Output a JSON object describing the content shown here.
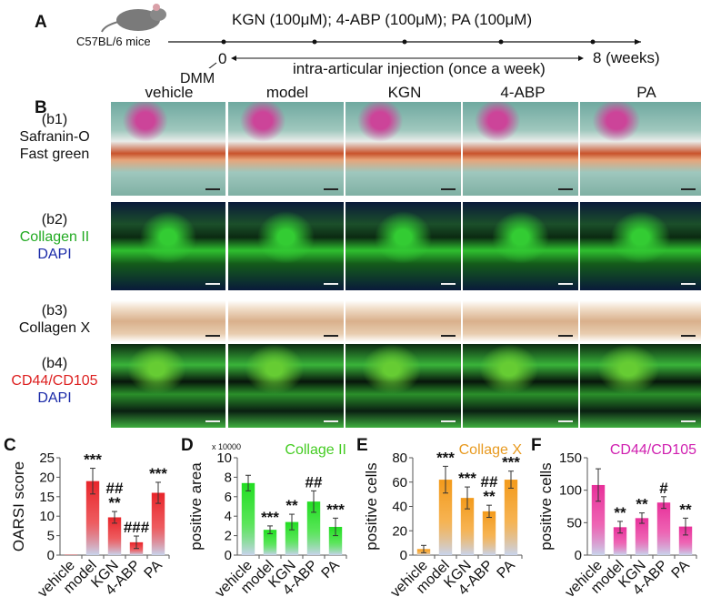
{
  "panelA": {
    "label": "A",
    "strain": "C57BL/6 mice",
    "treatment": "KGN (100μM); 4-ABP (100μM); PA (100μM)",
    "start": "0",
    "end": "8 (weeks)",
    "surgery": "DMM",
    "injection": "intra-articular injection (once a week)",
    "icon": "mouse-icon"
  },
  "panelB": {
    "label": "B",
    "columns": [
      "vehicle",
      "model",
      "KGN",
      "4-ABP",
      "PA"
    ],
    "rows": [
      {
        "id": "(b1)",
        "lines": [
          "Safranin-O",
          "Fast green"
        ],
        "colors": [
          "#111",
          "#111"
        ]
      },
      {
        "id": "(b2)",
        "lines": [
          "Collagen II",
          "DAPI"
        ],
        "colors": [
          "#22aa22",
          "#1a2aa8"
        ]
      },
      {
        "id": "(b3)",
        "lines": [
          "Collagen X"
        ],
        "colors": [
          "#111"
        ]
      },
      {
        "id": "(b4)",
        "lines": [
          "CD44/CD105",
          "DAPI"
        ],
        "colors": [
          "#dd2020",
          "#1a2aa8"
        ]
      }
    ]
  },
  "chart_data": [
    {
      "panel": "C",
      "type": "bar",
      "title": "",
      "ylabel": "OARSI score",
      "ylim": [
        0,
        25
      ],
      "yticks": [
        0,
        5,
        10,
        15,
        20,
        25
      ],
      "multiplier": "",
      "color": "#e8252a",
      "categories": [
        "vehicle",
        "model",
        "KGN",
        "4-ABP",
        "PA"
      ],
      "values": [
        0.1,
        19,
        9.7,
        3.3,
        16
      ],
      "errors": [
        0,
        3.3,
        1.5,
        1.6,
        2.7
      ],
      "annotations": [
        [],
        [
          "***"
        ],
        [
          "##",
          "**"
        ],
        [
          "###"
        ],
        [
          "***"
        ]
      ]
    },
    {
      "panel": "D",
      "type": "bar",
      "title": "Collage II",
      "title_color": "#44cc22",
      "ylabel": "positive area",
      "ylim": [
        0,
        10
      ],
      "yticks": [
        0,
        2,
        4,
        6,
        8,
        10
      ],
      "multiplier": "x 10000",
      "color": "#22dd22",
      "categories": [
        "vehicle",
        "model",
        "KGN",
        "4-ABP",
        "PA"
      ],
      "values": [
        7.4,
        2.6,
        3.4,
        5.5,
        2.9
      ],
      "errors": [
        0.8,
        0.4,
        0.8,
        1.1,
        0.9
      ],
      "annotations": [
        [],
        [
          "***"
        ],
        [
          "**"
        ],
        [
          "##"
        ],
        [
          "***"
        ]
      ]
    },
    {
      "panel": "E",
      "type": "bar",
      "title": "Collage X",
      "title_color": "#e89a20",
      "ylabel": "positive cells",
      "ylim": [
        0,
        80
      ],
      "yticks": [
        0,
        20,
        40,
        60,
        80
      ],
      "multiplier": "",
      "color": "#f39a1a",
      "categories": [
        "vehicle",
        "model",
        "KGN",
        "4-ABP",
        "PA"
      ],
      "values": [
        5,
        62,
        47,
        36,
        62
      ],
      "errors": [
        3,
        11,
        9,
        5,
        7
      ],
      "annotations": [
        [],
        [
          "***"
        ],
        [
          "***"
        ],
        [
          "##",
          "**"
        ],
        [
          "***"
        ]
      ]
    },
    {
      "panel": "F",
      "type": "bar",
      "title": "CD44/CD105",
      "title_color": "#d020b0",
      "ylabel": "positive cells",
      "ylim": [
        0,
        150
      ],
      "yticks": [
        0,
        50,
        100,
        150
      ],
      "multiplier": "",
      "color": "#e8309a",
      "categories": [
        "vehicle",
        "model",
        "KGN",
        "4-ABP",
        "PA"
      ],
      "values": [
        108,
        43,
        57,
        81,
        44
      ],
      "errors": [
        25,
        9,
        8,
        9,
        13
      ],
      "annotations": [
        [],
        [
          "**"
        ],
        [
          "**"
        ],
        [
          "#"
        ],
        [
          "**"
        ]
      ]
    }
  ]
}
